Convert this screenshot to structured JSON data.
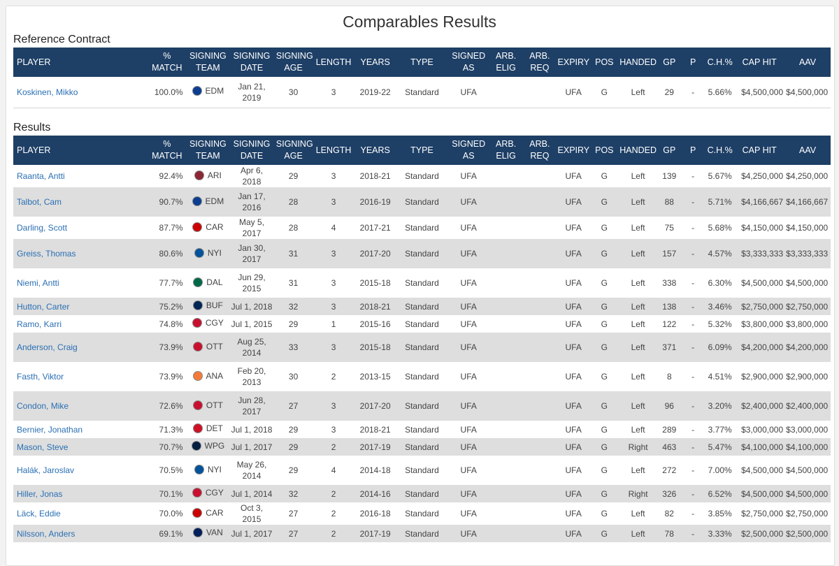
{
  "page_title": "Comparables Results",
  "reference_title": "Reference Contract",
  "results_title": "Results",
  "columns": {
    "player": "PLAYER",
    "match": "% MATCH",
    "signing_team": "SIGNING TEAM",
    "signing_date": "SIGNING DATE",
    "signing_age": "SIGNING AGE",
    "length": "LENGTH",
    "years": "YEARS",
    "type": "TYPE",
    "signed_as": "SIGNED AS",
    "arb_elig": "ARB. ELIG",
    "arb_req": "ARB. REQ",
    "expiry": "EXPIRY",
    "pos": "POS",
    "handed": "HANDED",
    "gp": "GP",
    "p": "P",
    "ch": "C.H.%",
    "cap_hit": "CAP HIT",
    "aav": "AAV"
  },
  "team_colors": {
    "EDM": "#0b3d91",
    "ARI": "#8c2633",
    "CAR": "#cc0000",
    "NYI": "#00539b",
    "DAL": "#006847",
    "BUF": "#002654",
    "CGY": "#c8102e",
    "OTT": "#c8102e",
    "ANA": "#f47a38",
    "DET": "#ce1126",
    "WPG": "#041e42",
    "VAN": "#00205b"
  },
  "reference": {
    "player": "Koskinen, Mikko",
    "match": "100.0%",
    "team": "EDM",
    "date": "Jan 21, 2019",
    "age": "30",
    "length": "3",
    "years": "2019-22",
    "type": "Standard",
    "signed_as": "UFA",
    "arb_elig": "",
    "arb_req": "",
    "expiry": "UFA",
    "pos": "G",
    "handed": "Left",
    "gp": "29",
    "p": "-",
    "ch": "5.66%",
    "cap_hit": "$4,500,000",
    "aav": "$4,500,000"
  },
  "results": [
    {
      "player": "Raanta, Antti",
      "match": "92.4%",
      "team": "ARI",
      "date": "Apr 6, 2018",
      "age": "29",
      "length": "3",
      "years": "2018-21",
      "type": "Standard",
      "signed_as": "UFA",
      "arb_elig": "",
      "arb_req": "",
      "expiry": "UFA",
      "pos": "G",
      "handed": "Left",
      "gp": "139",
      "p": "-",
      "ch": "5.67%",
      "cap_hit": "$4,250,000",
      "aav": "$4,250,000"
    },
    {
      "player": "Talbot, Cam",
      "match": "90.7%",
      "team": "EDM",
      "date": "Jan 17, 2016",
      "age": "28",
      "length": "3",
      "years": "2016-19",
      "type": "Standard",
      "signed_as": "UFA",
      "arb_elig": "",
      "arb_req": "",
      "expiry": "UFA",
      "pos": "G",
      "handed": "Left",
      "gp": "88",
      "p": "-",
      "ch": "5.71%",
      "cap_hit": "$4,166,667",
      "aav": "$4,166,667"
    },
    {
      "player": "Darling, Scott",
      "match": "87.7%",
      "team": "CAR",
      "date": "May 5, 2017",
      "age": "28",
      "length": "4",
      "years": "2017-21",
      "type": "Standard",
      "signed_as": "UFA",
      "arb_elig": "",
      "arb_req": "",
      "expiry": "UFA",
      "pos": "G",
      "handed": "Left",
      "gp": "75",
      "p": "-",
      "ch": "5.68%",
      "cap_hit": "$4,150,000",
      "aav": "$4,150,000"
    },
    {
      "player": "Greiss, Thomas",
      "match": "80.6%",
      "team": "NYI",
      "date": "Jan 30, 2017",
      "age": "31",
      "length": "3",
      "years": "2017-20",
      "type": "Standard",
      "signed_as": "UFA",
      "arb_elig": "",
      "arb_req": "",
      "expiry": "UFA",
      "pos": "G",
      "handed": "Left",
      "gp": "157",
      "p": "-",
      "ch": "4.57%",
      "cap_hit": "$3,333,333",
      "aav": "$3,333,333"
    },
    {
      "player": "Niemi, Antti",
      "match": "77.7%",
      "team": "DAL",
      "date": "Jun 29, 2015",
      "age": "31",
      "length": "3",
      "years": "2015-18",
      "type": "Standard",
      "signed_as": "UFA",
      "arb_elig": "",
      "arb_req": "",
      "expiry": "UFA",
      "pos": "G",
      "handed": "Left",
      "gp": "338",
      "p": "-",
      "ch": "6.30%",
      "cap_hit": "$4,500,000",
      "aav": "$4,500,000"
    },
    {
      "player": "Hutton, Carter",
      "match": "75.2%",
      "team": "BUF",
      "date": "Jul 1, 2018",
      "age": "32",
      "length": "3",
      "years": "2018-21",
      "type": "Standard",
      "signed_as": "UFA",
      "arb_elig": "",
      "arb_req": "",
      "expiry": "UFA",
      "pos": "G",
      "handed": "Left",
      "gp": "138",
      "p": "-",
      "ch": "3.46%",
      "cap_hit": "$2,750,000",
      "aav": "$2,750,000"
    },
    {
      "player": "Ramo, Karri",
      "match": "74.8%",
      "team": "CGY",
      "date": "Jul 1, 2015",
      "age": "29",
      "length": "1",
      "years": "2015-16",
      "type": "Standard",
      "signed_as": "UFA",
      "arb_elig": "",
      "arb_req": "",
      "expiry": "UFA",
      "pos": "G",
      "handed": "Left",
      "gp": "122",
      "p": "-",
      "ch": "5.32%",
      "cap_hit": "$3,800,000",
      "aav": "$3,800,000"
    },
    {
      "player": "Anderson, Craig",
      "match": "73.9%",
      "team": "OTT",
      "date": "Aug 25, 2014",
      "age": "33",
      "length": "3",
      "years": "2015-18",
      "type": "Standard",
      "signed_as": "UFA",
      "arb_elig": "",
      "arb_req": "",
      "expiry": "UFA",
      "pos": "G",
      "handed": "Left",
      "gp": "371",
      "p": "-",
      "ch": "6.09%",
      "cap_hit": "$4,200,000",
      "aav": "$4,200,000"
    },
    {
      "player": "Fasth, Viktor",
      "match": "73.9%",
      "team": "ANA",
      "date": "Feb 20, 2013",
      "age": "30",
      "length": "2",
      "years": "2013-15",
      "type": "Standard",
      "signed_as": "UFA",
      "arb_elig": "",
      "arb_req": "",
      "expiry": "UFA",
      "pos": "G",
      "handed": "Left",
      "gp": "8",
      "p": "-",
      "ch": "4.51%",
      "cap_hit": "$2,900,000",
      "aav": "$2,900,000"
    },
    {
      "player": "Condon, Mike",
      "match": "72.6%",
      "team": "OTT",
      "date": "Jun 28, 2017",
      "age": "27",
      "length": "3",
      "years": "2017-20",
      "type": "Standard",
      "signed_as": "UFA",
      "arb_elig": "",
      "arb_req": "",
      "expiry": "UFA",
      "pos": "G",
      "handed": "Left",
      "gp": "96",
      "p": "-",
      "ch": "3.20%",
      "cap_hit": "$2,400,000",
      "aav": "$2,400,000"
    },
    {
      "player": "Bernier, Jonathan",
      "match": "71.3%",
      "team": "DET",
      "date": "Jul 1, 2018",
      "age": "29",
      "length": "3",
      "years": "2018-21",
      "type": "Standard",
      "signed_as": "UFA",
      "arb_elig": "",
      "arb_req": "",
      "expiry": "UFA",
      "pos": "G",
      "handed": "Left",
      "gp": "289",
      "p": "-",
      "ch": "3.77%",
      "cap_hit": "$3,000,000",
      "aav": "$3,000,000"
    },
    {
      "player": "Mason, Steve",
      "match": "70.7%",
      "team": "WPG",
      "date": "Jul 1, 2017",
      "age": "29",
      "length": "2",
      "years": "2017-19",
      "type": "Standard",
      "signed_as": "UFA",
      "arb_elig": "",
      "arb_req": "",
      "expiry": "UFA",
      "pos": "G",
      "handed": "Right",
      "gp": "463",
      "p": "-",
      "ch": "5.47%",
      "cap_hit": "$4,100,000",
      "aav": "$4,100,000"
    },
    {
      "player": "Halák, Jaroslav",
      "match": "70.5%",
      "team": "NYI",
      "date": "May 26, 2014",
      "age": "29",
      "length": "4",
      "years": "2014-18",
      "type": "Standard",
      "signed_as": "UFA",
      "arb_elig": "",
      "arb_req": "",
      "expiry": "UFA",
      "pos": "G",
      "handed": "Left",
      "gp": "272",
      "p": "-",
      "ch": "7.00%",
      "cap_hit": "$4,500,000",
      "aav": "$4,500,000"
    },
    {
      "player": "Hiller, Jonas",
      "match": "70.1%",
      "team": "CGY",
      "date": "Jul 1, 2014",
      "age": "32",
      "length": "2",
      "years": "2014-16",
      "type": "Standard",
      "signed_as": "UFA",
      "arb_elig": "",
      "arb_req": "",
      "expiry": "UFA",
      "pos": "G",
      "handed": "Right",
      "gp": "326",
      "p": "-",
      "ch": "6.52%",
      "cap_hit": "$4,500,000",
      "aav": "$4,500,000"
    },
    {
      "player": "Läck, Eddie",
      "match": "70.0%",
      "team": "CAR",
      "date": "Oct 3, 2015",
      "age": "27",
      "length": "2",
      "years": "2016-18",
      "type": "Standard",
      "signed_as": "UFA",
      "arb_elig": "",
      "arb_req": "",
      "expiry": "UFA",
      "pos": "G",
      "handed": "Left",
      "gp": "82",
      "p": "-",
      "ch": "3.85%",
      "cap_hit": "$2,750,000",
      "aav": "$2,750,000"
    },
    {
      "player": "Nilsson, Anders",
      "match": "69.1%",
      "team": "VAN",
      "date": "Jul 1, 2017",
      "age": "27",
      "length": "2",
      "years": "2017-19",
      "type": "Standard",
      "signed_as": "UFA",
      "arb_elig": "",
      "arb_req": "",
      "expiry": "UFA",
      "pos": "G",
      "handed": "Left",
      "gp": "78",
      "p": "-",
      "ch": "3.33%",
      "cap_hit": "$2,500,000",
      "aav": "$2,500,000"
    }
  ]
}
